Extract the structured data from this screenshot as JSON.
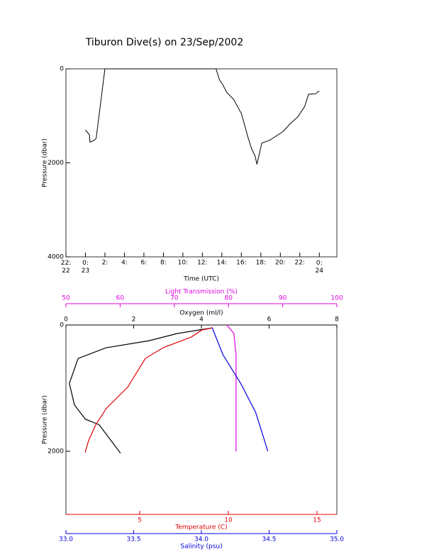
{
  "chart_data": [
    {
      "type": "line",
      "title": "Tiburon Dive(s) on 23/Sep/2002",
      "xlabel": "Time (UTC)",
      "ylabel": "Pressure (dbar)",
      "x": [
        0,
        0.4,
        0.47,
        0.9,
        1.1,
        2.0,
        13.4,
        13.75,
        14.1,
        14.5,
        15.2,
        15.6,
        16.0,
        16.3,
        16.7,
        17.05,
        17.4,
        17.6,
        18.1,
        18.9,
        20.3,
        21.0,
        21.8,
        22.5,
        22.9,
        23.6,
        24.0
      ],
      "values": [
        1300,
        1400,
        1560,
        1520,
        1480,
        0,
        0,
        230,
        340,
        500,
        650,
        800,
        950,
        1170,
        1470,
        1700,
        1850,
        2030,
        1580,
        1520,
        1330,
        1170,
        1020,
        800,
        540,
        530,
        470
      ],
      "color": "#000000",
      "xlim": [
        -2,
        25.8
      ],
      "xticks": [
        {
          "value": -2,
          "label": "22:\n22"
        },
        {
          "value": 0,
          "label": "0:\n23"
        },
        {
          "value": 2,
          "label": "2:"
        },
        {
          "value": 4,
          "label": "4:"
        },
        {
          "value": 6,
          "label": "6:"
        },
        {
          "value": 8,
          "label": "8:"
        },
        {
          "value": 10,
          "label": "10:"
        },
        {
          "value": 12,
          "label": "12:"
        },
        {
          "value": 14,
          "label": "14:"
        },
        {
          "value": 16,
          "label": "16:"
        },
        {
          "value": 18,
          "label": "18:"
        },
        {
          "value": 20,
          "label": "20:"
        },
        {
          "value": 22,
          "label": "22:"
        },
        {
          "value": 24,
          "label": "0:\n24"
        }
      ],
      "ylim": [
        0,
        4000
      ],
      "yticks": [
        0,
        2000,
        4000
      ],
      "yinverted": true
    },
    {
      "type": "profile",
      "ylabel": "Pressure (dbar)",
      "ylim": [
        0,
        3000
      ],
      "yticks": [
        0,
        2000
      ],
      "yinverted": true,
      "x_axes": [
        {
          "label": "Oxygen (ml/l)",
          "color": "#000000",
          "position": "top",
          "xlim": [
            0,
            8
          ],
          "xticks": [
            0,
            2,
            4,
            6,
            8
          ],
          "x": [
            4.33,
            3.29,
            2.45,
            1.19,
            0.36,
            0.1,
            0.25,
            0.57,
            0.98,
            1.61
          ],
          "y": [
            45,
            135,
            250,
            360,
            530,
            925,
            1265,
            1490,
            1580,
            2030
          ]
        },
        {
          "label": "Light Transmission (%)",
          "color": "#e000e0",
          "position": "top",
          "xlim": [
            50,
            100
          ],
          "xticks": [
            50,
            60,
            70,
            80,
            90,
            100
          ],
          "x": [
            79.7,
            81.0,
            81.4,
            81.4
          ],
          "y": [
            0,
            135,
            475,
            2000
          ]
        },
        {
          "label": "Temperature (C)",
          "color": "#e00000",
          "position": "bottom",
          "xlim": [
            0.84,
            16.12
          ],
          "xticks": [
            5,
            10,
            15
          ],
          "x": [
            9.12,
            8.5,
            7.92,
            6.32,
            5.32,
            4.32,
            3.12,
            2.52,
            2.12,
            1.92
          ],
          "y": [
            45,
            80,
            190,
            360,
            530,
            985,
            1320,
            1580,
            1830,
            2020
          ]
        },
        {
          "label": "Salinity (psu)",
          "color": "#0000e0",
          "position": "bottom",
          "xlim": [
            33,
            35
          ],
          "xticks": [
            {
              "value": 33,
              "label": "33.0"
            },
            33.5,
            {
              "value": 34,
              "label": "34.0"
            },
            34.5,
            {
              "value": 35,
              "label": "35.0"
            }
          ],
          "x": [
            34.08,
            34.16,
            34.29,
            34.4,
            34.45,
            34.49
          ],
          "y": [
            45,
            475,
            925,
            1380,
            1720,
            2000
          ]
        }
      ]
    }
  ]
}
